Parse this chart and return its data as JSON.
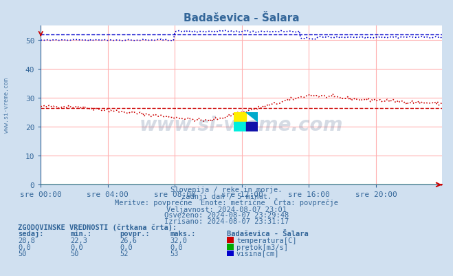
{
  "title": "Badaševica - Šalara",
  "bg_color": "#d0e0f0",
  "plot_bg_color": "#ffffff",
  "grid_color_h": "#ffb0b0",
  "grid_color_v": "#ffb0b0",
  "text_color": "#336699",
  "xlabel_ticks": [
    "sre 00:00",
    "sre 04:00",
    "sre 08:00",
    "sre 12:00",
    "sre 16:00",
    "sre 20:00"
  ],
  "xlabel_tick_pos": [
    0,
    48,
    96,
    144,
    192,
    240
  ],
  "ylim": [
    0,
    55
  ],
  "yticks": [
    0,
    10,
    20,
    30,
    40,
    50
  ],
  "total_points": 288,
  "watermark": "www.si-vreme.com",
  "subtitle_lines": [
    "Slovenija / reke in morje.",
    "zadnji dan / 5 minut.",
    "Meritve: povprečne  Enote: metrične  Črta: povprečje",
    "Veljavnost: 2024-08-07 23:01",
    "Osveženo: 2024-08-07 23:29:48",
    "Izrisano: 2024-08-07 23:31:17"
  ],
  "legend_header": "ZGODOVINSKE VREDNOSTI (črtkana črta):",
  "legend_cols": [
    "sedaj:",
    "min.:",
    "povpr.:",
    "maks.:"
  ],
  "legend_station": "Badaševica - Šalara",
  "legend_rows": [
    {
      "sedaj": "28,8",
      "min": "22,3",
      "povpr": "26,6",
      "maks": "32,0",
      "color": "#cc0000",
      "label": "temperatura[C]"
    },
    {
      "sedaj": "0,0",
      "min": "0,0",
      "povpr": "0,0",
      "maks": "0,0",
      "color": "#00aa00",
      "label": "pretok[m3/s]"
    },
    {
      "sedaj": "50",
      "min": "50",
      "povpr": "52",
      "maks": "53",
      "color": "#0000cc",
      "label": "višina[cm]"
    }
  ],
  "temp_color": "#cc0000",
  "pretok_color": "#00aa00",
  "visina_color": "#0000cc",
  "dashed_temp_avg": 26.6,
  "dashed_visina_avg": 52.0,
  "axis_color": "#336699",
  "left_label": "www.si-vreme.com"
}
